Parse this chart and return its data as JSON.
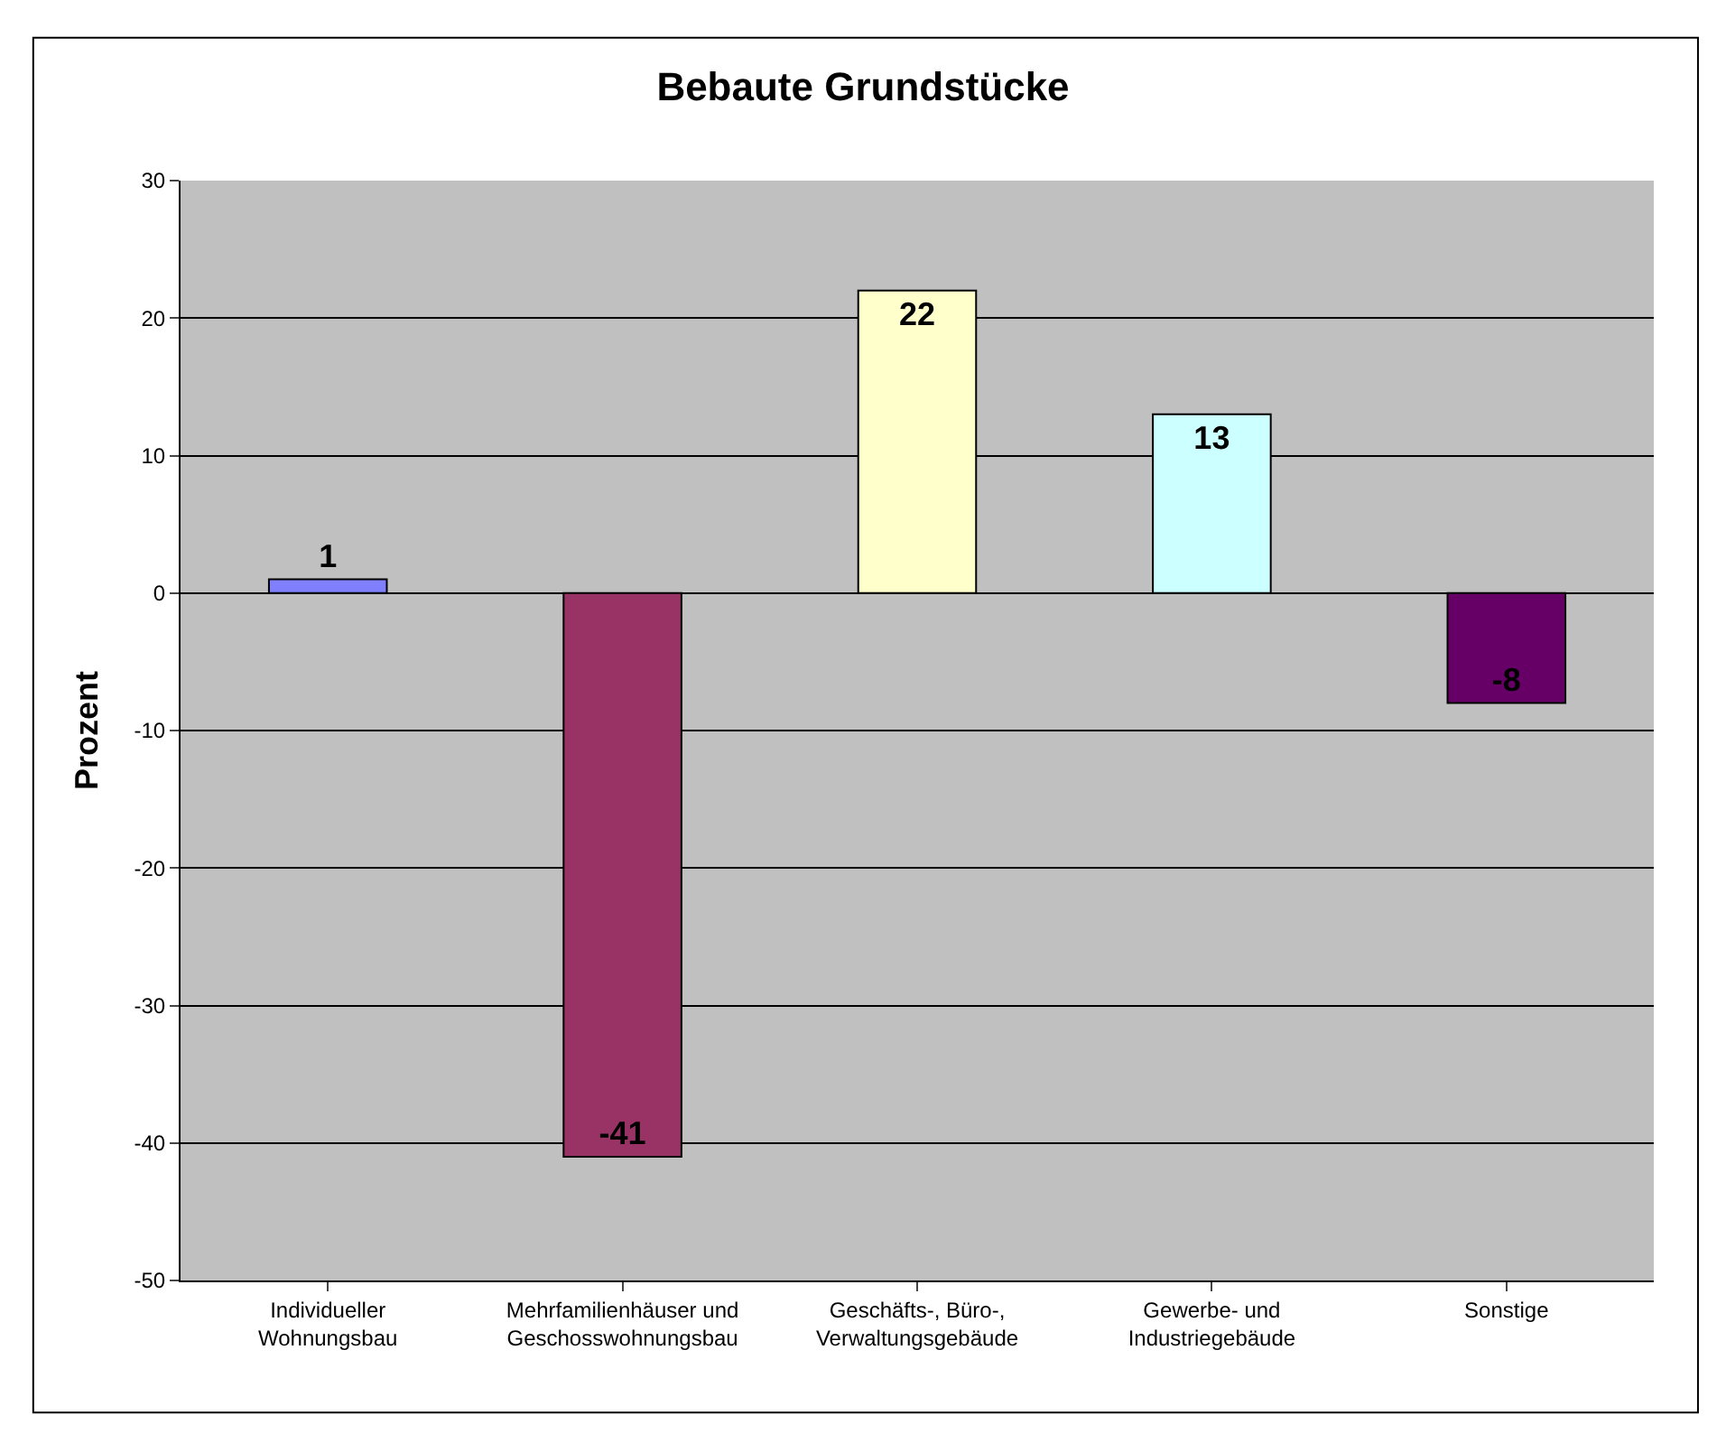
{
  "chart_data": {
    "type": "bar",
    "title": "Bebaute Grundstücke",
    "ylabel": "Prozent",
    "categories": [
      "Individueller Wohnungsbau",
      "Mehrfamilienhäuser und Geschosswohnungsbau",
      "Geschäfts-, Büro-, Verwaltungsgebäude",
      "Gewerbe- und Industriegebäude",
      "Sonstige"
    ],
    "values": [
      1,
      -41,
      22,
      13,
      -8
    ],
    "colors": [
      "#8080ff",
      "#993366",
      "#ffffcc",
      "#ccffff",
      "#660066"
    ],
    "ylim": [
      -50,
      30
    ],
    "yticks": [
      -50,
      -40,
      -30,
      -20,
      -10,
      0,
      10,
      20,
      30
    ],
    "grid": "y",
    "data_labels": true
  }
}
